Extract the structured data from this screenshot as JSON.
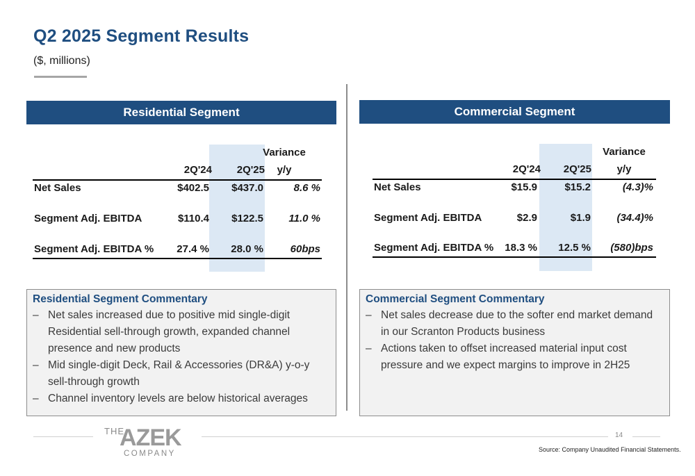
{
  "header": {
    "title": "Q2 2025 Segment Results",
    "subtitle": "($, millions)"
  },
  "residential": {
    "header": "Residential Segment",
    "columns": {
      "prior": "2Q'24",
      "current": "2Q'25",
      "variance_top": "Variance",
      "variance_bottom": "y/y"
    },
    "rows": [
      {
        "label": "Net Sales",
        "prior": "$402.5",
        "current": "$437.0",
        "variance": "8.6 %"
      },
      {
        "label": "Segment Adj. EBITDA",
        "prior": "$110.4",
        "current": "$122.5",
        "variance": "11.0 %"
      },
      {
        "label": "Segment Adj. EBITDA %",
        "prior": "27.4 %",
        "current": "28.0 %",
        "variance": "60bps"
      }
    ],
    "commentary": {
      "title": "Residential Segment Commentary",
      "bullets": [
        "Net sales increased due to positive mid single-digit Residential sell-through growth, expanded channel presence and new products",
        "Mid single-digit Deck, Rail & Accessories (DR&A) y-o-y sell-through growth",
        "Channel inventory levels are below historical averages"
      ]
    }
  },
  "commercial": {
    "header": "Commercial Segment",
    "columns": {
      "prior": "2Q'24",
      "current": "2Q'25",
      "variance_top": "Variance",
      "variance_bottom": "y/y"
    },
    "rows": [
      {
        "label": "Net Sales",
        "prior": "$15.9",
        "current": "$15.2",
        "variance": "(4.3)%"
      },
      {
        "label": "Segment Adj. EBITDA",
        "prior": "$2.9",
        "current": "$1.9",
        "variance": "(34.4)%"
      },
      {
        "label": "Segment Adj. EBITDA %",
        "prior": "18.3 %",
        "current": "12.5 %",
        "variance": "(580)bps"
      }
    ],
    "commentary": {
      "title": "Commercial Segment Commentary",
      "bullets": [
        "Net sales decrease due to the softer end market demand in our Scranton Products business",
        "Actions taken to offset increased material input cost pressure and we expect margins to improve in 2H25"
      ]
    }
  },
  "footer": {
    "logo": {
      "the": "THE",
      "azek": "AZEK",
      "company": "COMPANY"
    },
    "page_number": "14",
    "source": "Source: Company Unaudited Financial Statements."
  },
  "colors": {
    "brand_blue": "#1f4e80",
    "highlight": "#dce8f4",
    "box_bg": "#f2f2f2"
  }
}
